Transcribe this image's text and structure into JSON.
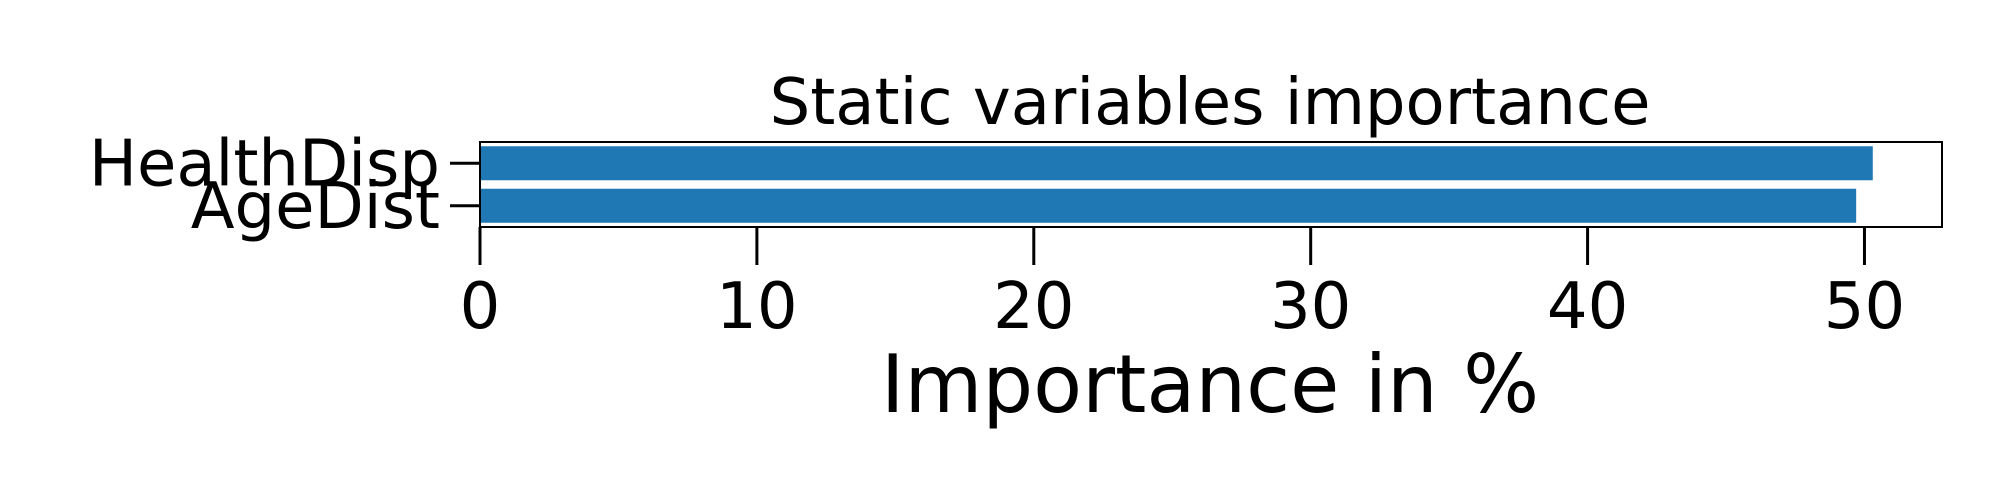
{
  "chart_data": {
    "type": "bar",
    "orientation": "horizontal",
    "title": "Static variables importance",
    "xlabel": "Importance in %",
    "ylabel": "",
    "categories": [
      "HealthDisp",
      "AgeDist"
    ],
    "values": [
      50.3,
      49.7
    ],
    "xlim": [
      0,
      52.8
    ],
    "xticks": [
      0,
      10,
      20,
      30,
      40,
      50
    ],
    "xtick_labels": [
      "0",
      "10",
      "20",
      "30",
      "40",
      "50"
    ],
    "grid": false,
    "bar_color": "#1f77b4",
    "axis_color": "#000000"
  }
}
